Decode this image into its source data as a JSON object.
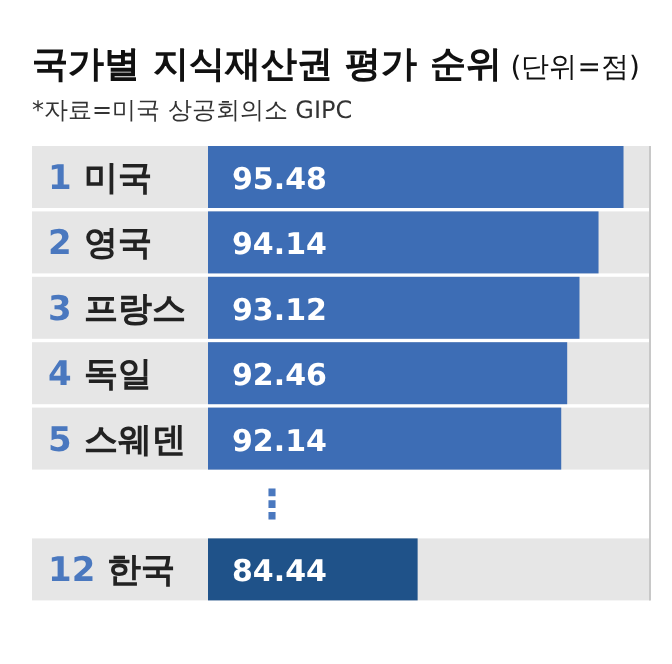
{
  "chart_data": {
    "type": "bar",
    "orientation": "horizontal",
    "title": "국가별 지식재산권 평가 순위",
    "subtitle": "(단위=점)",
    "annotations": [
      "*자료=미국 상공회의소 GIPC"
    ],
    "categories": [
      "1 미국",
      "2 영국",
      "3 프랑스",
      "4 독일",
      "5 스웨덴",
      "⋮",
      "12 한국"
    ],
    "values": [
      95.48,
      94.14,
      93.12,
      92.46,
      92.14,
      null,
      84.44
    ],
    "colors": [
      "#3d6db5",
      "#3d6db5",
      "#3d6db5",
      "#3d6db5",
      "#3d6db5",
      null,
      "#1f5289"
    ],
    "xlim": [
      73.2,
      96.9
    ],
    "data_labels": true
  }
}
